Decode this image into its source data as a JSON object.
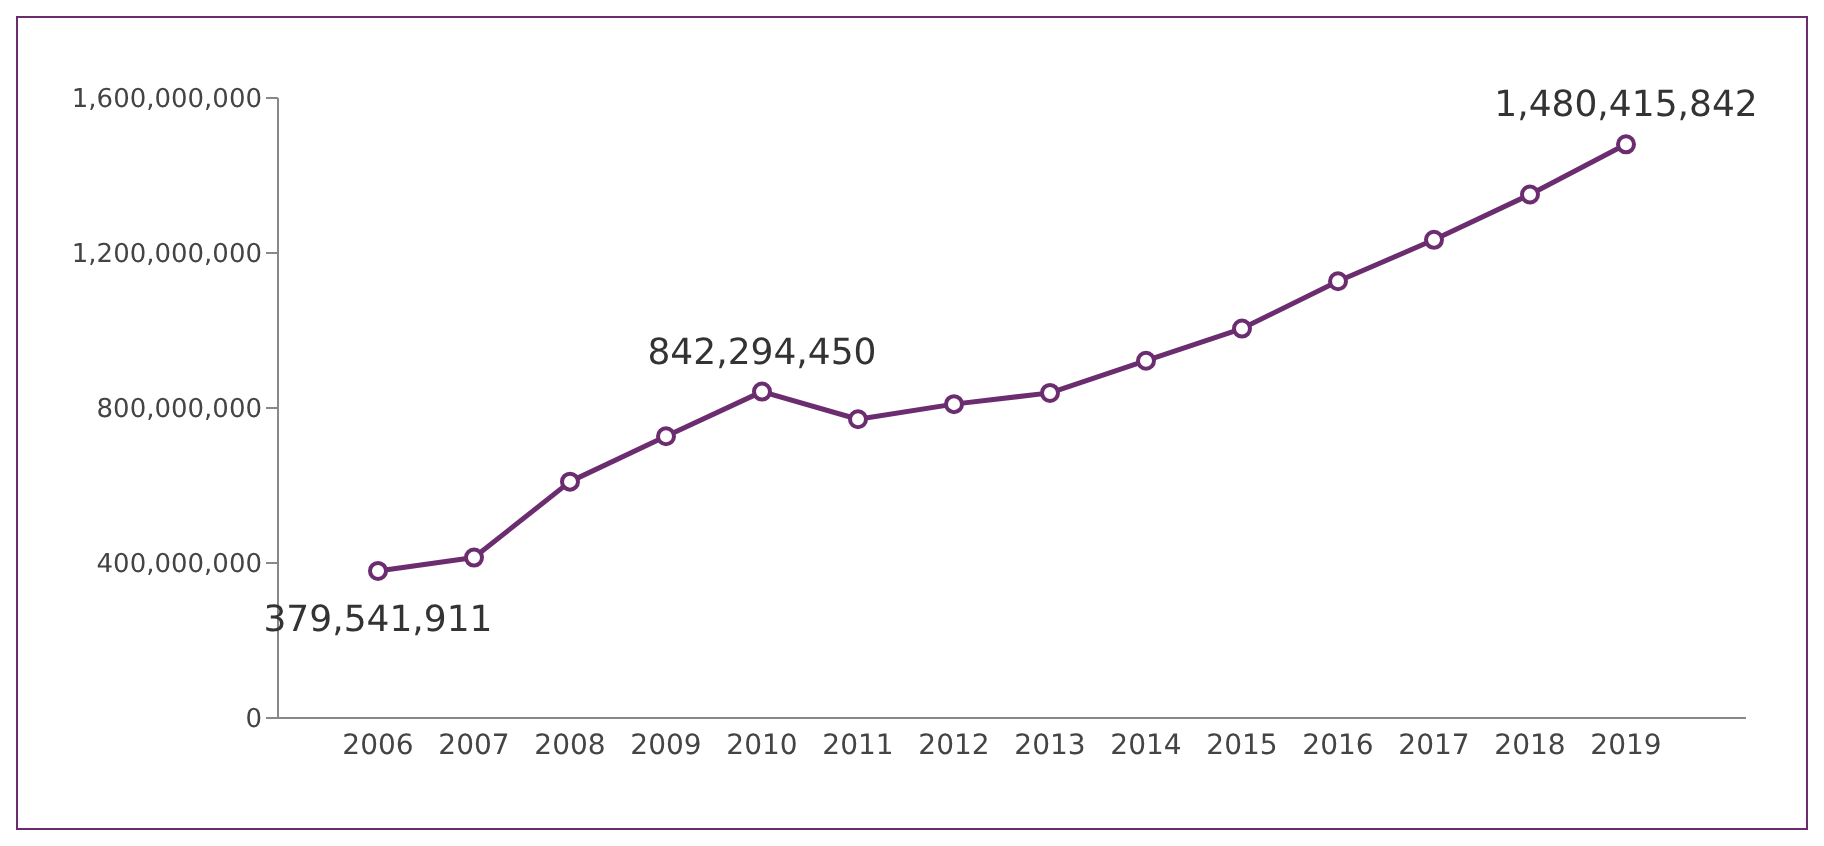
{
  "chart_data": {
    "type": "line",
    "categories": [
      "2006",
      "2007",
      "2008",
      "2009",
      "2010",
      "2011",
      "2012",
      "2013",
      "2014",
      "2015",
      "2016",
      "2017",
      "2018",
      "2019"
    ],
    "series": [
      {
        "color": "#6b2d6f",
        "values": [
          379541911,
          414000000,
          610000000,
          727000000,
          842294450,
          771000000,
          810000000,
          839000000,
          922000000,
          1005000000,
          1127000000,
          1234000000,
          1351000000,
          1480415842
        ],
        "value_labels": [
          "379,541,911",
          null,
          null,
          null,
          "842,294,450",
          null,
          null,
          null,
          null,
          null,
          null,
          null,
          null,
          "1,480,415,842"
        ]
      }
    ],
    "ylim": [
      0,
      1600000000
    ],
    "yticks": [
      0,
      {
        "value": 400000000,
        "label": "400,000,000"
      },
      {
        "value": 800000000,
        "label": "800,000,000"
      },
      {
        "value": 1200000000,
        "label": "1,200,000,000"
      },
      {
        "value": 1600000000,
        "label": "1,600,000,000"
      }
    ],
    "marker": "circle",
    "line_style": "solid"
  }
}
